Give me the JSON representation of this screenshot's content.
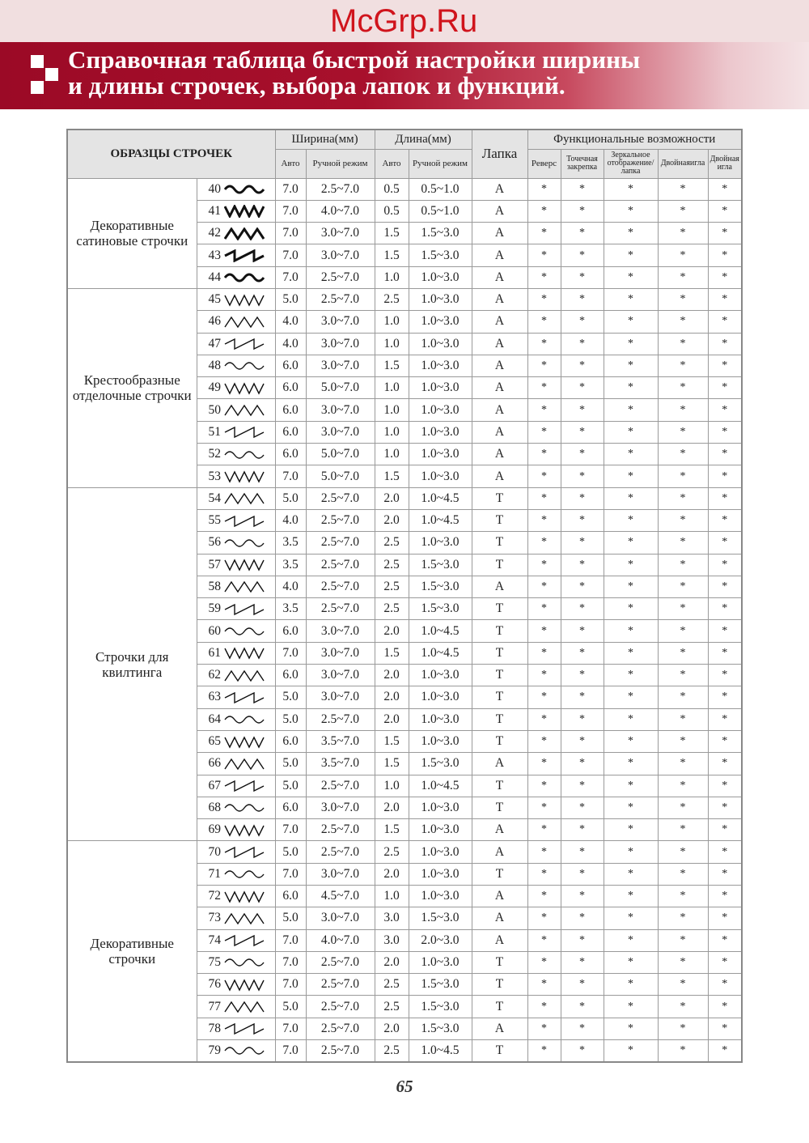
{
  "title": {
    "line1": "Справочная таблица быстрой настройки ширины",
    "line2": "и длины строчек, выбора лапок и функций."
  },
  "header": {
    "patterns": "ОБРАЗЦЫ СТРОЧЕК",
    "width": "Ширина(мм)",
    "length": "Длина(мм)",
    "foot": "Лапка",
    "functions": "Функциональные возможности",
    "auto": "Авто",
    "manual": "Ручной режим",
    "reverse": "Реверс",
    "lock": "Точечная закрепка",
    "mirror": "Зеркальное отображение/ лапка",
    "twin1": "Двойнаяигла",
    "twin2": "Двойная игла"
  },
  "groups": [
    {
      "label": "Декоративные сатиновые строчки",
      "rows": [
        [
          "40",
          "7.0",
          "2.5~7.0",
          "0.5",
          "0.5~1.0",
          "A"
        ],
        [
          "41",
          "7.0",
          "4.0~7.0",
          "0.5",
          "0.5~1.0",
          "A"
        ],
        [
          "42",
          "7.0",
          "3.0~7.0",
          "1.5",
          "1.5~3.0",
          "A"
        ],
        [
          "43",
          "7.0",
          "3.0~7.0",
          "1.5",
          "1.5~3.0",
          "A"
        ],
        [
          "44",
          "7.0",
          "2.5~7.0",
          "1.0",
          "1.0~3.0",
          "A"
        ]
      ]
    },
    {
      "label": "Крестообразные отделочные строчки",
      "rows": [
        [
          "45",
          "5.0",
          "2.5~7.0",
          "2.5",
          "1.0~3.0",
          "A"
        ],
        [
          "46",
          "4.0",
          "3.0~7.0",
          "1.0",
          "1.0~3.0",
          "A"
        ],
        [
          "47",
          "4.0",
          "3.0~7.0",
          "1.0",
          "1.0~3.0",
          "A"
        ],
        [
          "48",
          "6.0",
          "3.0~7.0",
          "1.5",
          "1.0~3.0",
          "A"
        ],
        [
          "49",
          "6.0",
          "5.0~7.0",
          "1.0",
          "1.0~3.0",
          "A"
        ],
        [
          "50",
          "6.0",
          "3.0~7.0",
          "1.0",
          "1.0~3.0",
          "A"
        ],
        [
          "51",
          "6.0",
          "3.0~7.0",
          "1.0",
          "1.0~3.0",
          "A"
        ],
        [
          "52",
          "6.0",
          "5.0~7.0",
          "1.0",
          "1.0~3.0",
          "A"
        ],
        [
          "53",
          "7.0",
          "5.0~7.0",
          "1.5",
          "1.0~3.0",
          "A"
        ]
      ]
    },
    {
      "label": "Строчки для квилтинга",
      "rows": [
        [
          "54",
          "5.0",
          "2.5~7.0",
          "2.0",
          "1.0~4.5",
          "T"
        ],
        [
          "55",
          "4.0",
          "2.5~7.0",
          "2.0",
          "1.0~4.5",
          "T"
        ],
        [
          "56",
          "3.5",
          "2.5~7.0",
          "2.5",
          "1.0~3.0",
          "T"
        ],
        [
          "57",
          "3.5",
          "2.5~7.0",
          "2.5",
          "1.5~3.0",
          "T"
        ],
        [
          "58",
          "4.0",
          "2.5~7.0",
          "2.5",
          "1.5~3.0",
          "A"
        ],
        [
          "59",
          "3.5",
          "2.5~7.0",
          "2.5",
          "1.5~3.0",
          "T"
        ],
        [
          "60",
          "6.0",
          "3.0~7.0",
          "2.0",
          "1.0~4.5",
          "T"
        ],
        [
          "61",
          "7.0",
          "3.0~7.0",
          "1.5",
          "1.0~4.5",
          "T"
        ],
        [
          "62",
          "6.0",
          "3.0~7.0",
          "2.0",
          "1.0~3.0",
          "T"
        ],
        [
          "63",
          "5.0",
          "3.0~7.0",
          "2.0",
          "1.0~3.0",
          "T"
        ],
        [
          "64",
          "5.0",
          "2.5~7.0",
          "2.0",
          "1.0~3.0",
          "T"
        ],
        [
          "65",
          "6.0",
          "3.5~7.0",
          "1.5",
          "1.0~3.0",
          "T"
        ],
        [
          "66",
          "5.0",
          "3.5~7.0",
          "1.5",
          "1.5~3.0",
          "A"
        ],
        [
          "67",
          "5.0",
          "2.5~7.0",
          "1.0",
          "1.0~4.5",
          "T"
        ],
        [
          "68",
          "6.0",
          "3.0~7.0",
          "2.0",
          "1.0~3.0",
          "T"
        ],
        [
          "69",
          "7.0",
          "2.5~7.0",
          "1.5",
          "1.0~3.0",
          "A"
        ]
      ]
    },
    {
      "label": "Декоративные строчки",
      "rows": [
        [
          "70",
          "5.0",
          "2.5~7.0",
          "2.5",
          "1.0~3.0",
          "A"
        ],
        [
          "71",
          "7.0",
          "3.0~7.0",
          "2.0",
          "1.0~3.0",
          "T"
        ],
        [
          "72",
          "6.0",
          "4.5~7.0",
          "1.0",
          "1.0~3.0",
          "A"
        ],
        [
          "73",
          "5.0",
          "3.0~7.0",
          "3.0",
          "1.5~3.0",
          "A"
        ],
        [
          "74",
          "7.0",
          "4.0~7.0",
          "3.0",
          "2.0~3.0",
          "A"
        ],
        [
          "75",
          "7.0",
          "2.5~7.0",
          "2.0",
          "1.0~3.0",
          "T"
        ],
        [
          "76",
          "7.0",
          "2.5~7.0",
          "2.5",
          "1.5~3.0",
          "T"
        ],
        [
          "77",
          "5.0",
          "2.5~7.0",
          "2.5",
          "1.5~3.0",
          "T"
        ],
        [
          "78",
          "7.0",
          "2.5~7.0",
          "2.0",
          "1.5~3.0",
          "A"
        ],
        [
          "79",
          "7.0",
          "2.5~7.0",
          "2.5",
          "1.0~4.5",
          "T"
        ]
      ]
    }
  ],
  "star": "*",
  "watermark": "McGrp.Ru",
  "page_number": "65"
}
